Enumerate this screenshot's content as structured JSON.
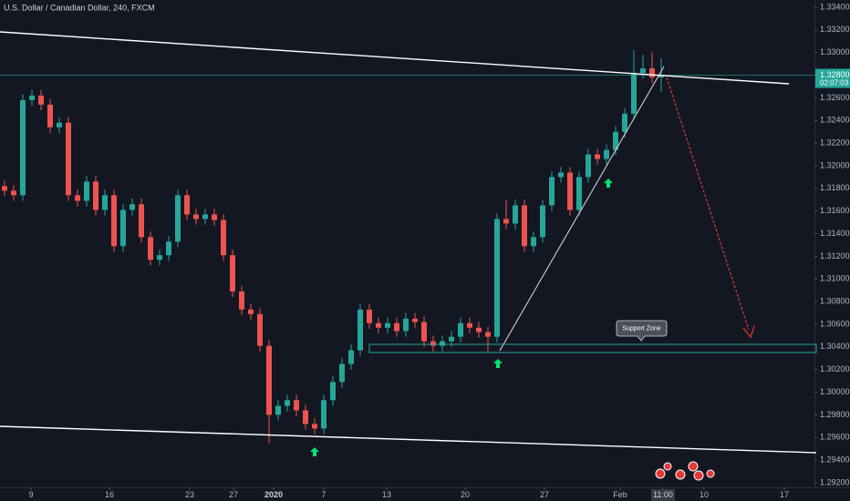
{
  "chart_data": {
    "type": "candlestick",
    "title": "U.S. Dollar / Canadian Dollar, 240, FXCM",
    "open": [
      1.3182,
      1.3178,
      1.3174,
      1.3258,
      1.3262,
      1.3254,
      1.3234,
      1.3238,
      1.3174,
      1.3169,
      1.3186,
      1.3161,
      1.3174,
      1.3129,
      1.3161,
      1.3166,
      1.3137,
      1.3117,
      1.3121,
      1.3133,
      1.3174,
      1.3157,
      1.3153,
      1.3157,
      1.3152,
      1.3121,
      1.3089,
      1.3073,
      1.3069,
      1.3041,
      1.298,
      1.2988,
      1.2993,
      1.2984,
      1.2972,
      1.2968,
      1.2993,
      1.3009,
      1.3025,
      1.3037,
      1.3073,
      1.3061,
      1.3057,
      1.3061,
      1.3054,
      1.3065,
      1.3062,
      1.3045,
      1.3041,
      1.3045,
      1.3049,
      1.3061,
      1.3057,
      1.3053,
      1.3049,
      1.3153,
      1.3149,
      1.3165,
      1.3129,
      1.3137,
      1.3165,
      1.319,
      1.3194,
      1.3161,
      1.319,
      1.321,
      1.3206,
      1.3214,
      1.323,
      1.3246,
      1.3282,
      1.3286,
      1.3278
    ],
    "high": [
      1.3187,
      1.3183,
      1.3263,
      1.3267,
      1.3267,
      1.3259,
      1.3243,
      1.3243,
      1.3179,
      1.3191,
      1.3191,
      1.3179,
      1.3179,
      1.3166,
      1.3171,
      1.3171,
      1.3142,
      1.3126,
      1.3138,
      1.3179,
      1.3179,
      1.3162,
      1.3162,
      1.3162,
      1.3157,
      1.3126,
      1.3094,
      1.3078,
      1.3074,
      1.3046,
      1.2993,
      1.2998,
      1.2998,
      1.2989,
      1.2977,
      1.2998,
      1.3014,
      1.303,
      1.3042,
      1.3078,
      1.3078,
      1.3066,
      1.3066,
      1.3066,
      1.307,
      1.307,
      1.3067,
      1.305,
      1.305,
      1.3054,
      1.3066,
      1.3066,
      1.3062,
      1.3058,
      1.3158,
      1.317,
      1.317,
      1.317,
      1.3142,
      1.317,
      1.3195,
      1.3199,
      1.3199,
      1.3195,
      1.3215,
      1.3215,
      1.3219,
      1.3235,
      1.3251,
      1.3302,
      1.3298,
      1.33,
      1.3295
    ],
    "low": [
      1.3173,
      1.3169,
      1.3169,
      1.3253,
      1.3249,
      1.3229,
      1.3229,
      1.3169,
      1.3164,
      1.3164,
      1.3156,
      1.3156,
      1.3124,
      1.3124,
      1.3156,
      1.3132,
      1.3112,
      1.3112,
      1.3116,
      1.3128,
      1.3152,
      1.3148,
      1.3148,
      1.3147,
      1.3116,
      1.3084,
      1.3068,
      1.3064,
      1.3036,
      1.2955,
      1.2975,
      1.2983,
      1.2979,
      1.2967,
      1.2963,
      1.2963,
      1.2988,
      1.3004,
      1.302,
      1.3032,
      1.3056,
      1.3052,
      1.3052,
      1.3049,
      1.3049,
      1.3057,
      1.304,
      1.3036,
      1.3036,
      1.304,
      1.3044,
      1.3052,
      1.3048,
      1.3036,
      1.3044,
      1.3144,
      1.3144,
      1.3124,
      1.3124,
      1.3132,
      1.316,
      1.3185,
      1.3156,
      1.3156,
      1.3185,
      1.3201,
      1.3201,
      1.3209,
      1.3225,
      1.3241,
      1.3277,
      1.3273,
      1.3265
    ],
    "close": [
      1.3178,
      1.3174,
      1.3258,
      1.3262,
      1.3254,
      1.3234,
      1.3238,
      1.3174,
      1.3169,
      1.3186,
      1.3161,
      1.3174,
      1.3129,
      1.3161,
      1.3166,
      1.3137,
      1.3117,
      1.3121,
      1.3133,
      1.3174,
      1.3157,
      1.3153,
      1.3157,
      1.3152,
      1.3121,
      1.3089,
      1.3073,
      1.3069,
      1.3041,
      1.298,
      1.2988,
      1.2993,
      1.2984,
      1.2972,
      1.2968,
      1.2993,
      1.3009,
      1.3025,
      1.3037,
      1.3073,
      1.3061,
      1.3057,
      1.3061,
      1.3054,
      1.3065,
      1.3062,
      1.3045,
      1.3041,
      1.3045,
      1.3049,
      1.3061,
      1.3057,
      1.3053,
      1.3049,
      1.3153,
      1.3149,
      1.3165,
      1.3129,
      1.3137,
      1.3165,
      1.319,
      1.3194,
      1.3161,
      1.319,
      1.321,
      1.3206,
      1.3214,
      1.323,
      1.3246,
      1.3282,
      1.3286,
      1.3278,
      1.328
    ],
    "up_color": "#26a69a",
    "down_color": "#ef5350",
    "xlim": [
      0,
      89.3
    ],
    "xticks": [
      {
        "value": 3.4,
        "label": "9"
      },
      {
        "value": 12,
        "label": "16"
      },
      {
        "value": 20.8,
        "label": "23"
      },
      {
        "value": 25.6,
        "label": "27"
      },
      {
        "value": 30,
        "label": "2020"
      },
      {
        "value": 35.5,
        "label": "7"
      },
      {
        "value": 42.4,
        "label": "13"
      },
      {
        "value": 51,
        "label": "20"
      },
      {
        "value": 59.7,
        "label": "27"
      },
      {
        "value": 68,
        "label": "Feb"
      },
      {
        "value": 72.7,
        "label": "11:00"
      },
      {
        "value": 77.2,
        "label": "10"
      },
      {
        "value": 86,
        "label": "17"
      }
    ],
    "ylim": [
      1.2916,
      1.33464
    ],
    "yticks": [
      {
        "value": 1.334,
        "label": "1.33400"
      },
      {
        "value": 1.332,
        "label": "1.33200"
      },
      {
        "value": 1.33,
        "label": "1.33000"
      },
      {
        "value": 1.328,
        "label": "1.32800"
      },
      {
        "value": 1.326,
        "label": "1.32600"
      },
      {
        "value": 1.324,
        "label": "1.32400"
      },
      {
        "value": 1.322,
        "label": "1.32200"
      },
      {
        "value": 1.32,
        "label": "1.32000"
      },
      {
        "value": 1.318,
        "label": "1.31800"
      },
      {
        "value": 1.316,
        "label": "1.31600"
      },
      {
        "value": 1.314,
        "label": "1.31400"
      },
      {
        "value": 1.312,
        "label": "1.31200"
      },
      {
        "value": 1.31,
        "label": "1.31000"
      },
      {
        "value": 1.308,
        "label": "1.30800"
      },
      {
        "value": 1.306,
        "label": "1.30600"
      },
      {
        "value": 1.304,
        "label": "1.30400"
      },
      {
        "value": 1.302,
        "label": "1.30200"
      },
      {
        "value": 1.3,
        "label": "1.30000"
      },
      {
        "value": 1.298,
        "label": "1.29800"
      },
      {
        "value": 1.296,
        "label": "1.29600"
      },
      {
        "value": 1.294,
        "label": "1.29400"
      },
      {
        "value": 1.292,
        "label": "1.29200"
      }
    ],
    "last_price": {
      "value": 1.328,
      "label": "1.32800"
    },
    "countdown": "02:07:03",
    "annotation": "Support Zone"
  }
}
